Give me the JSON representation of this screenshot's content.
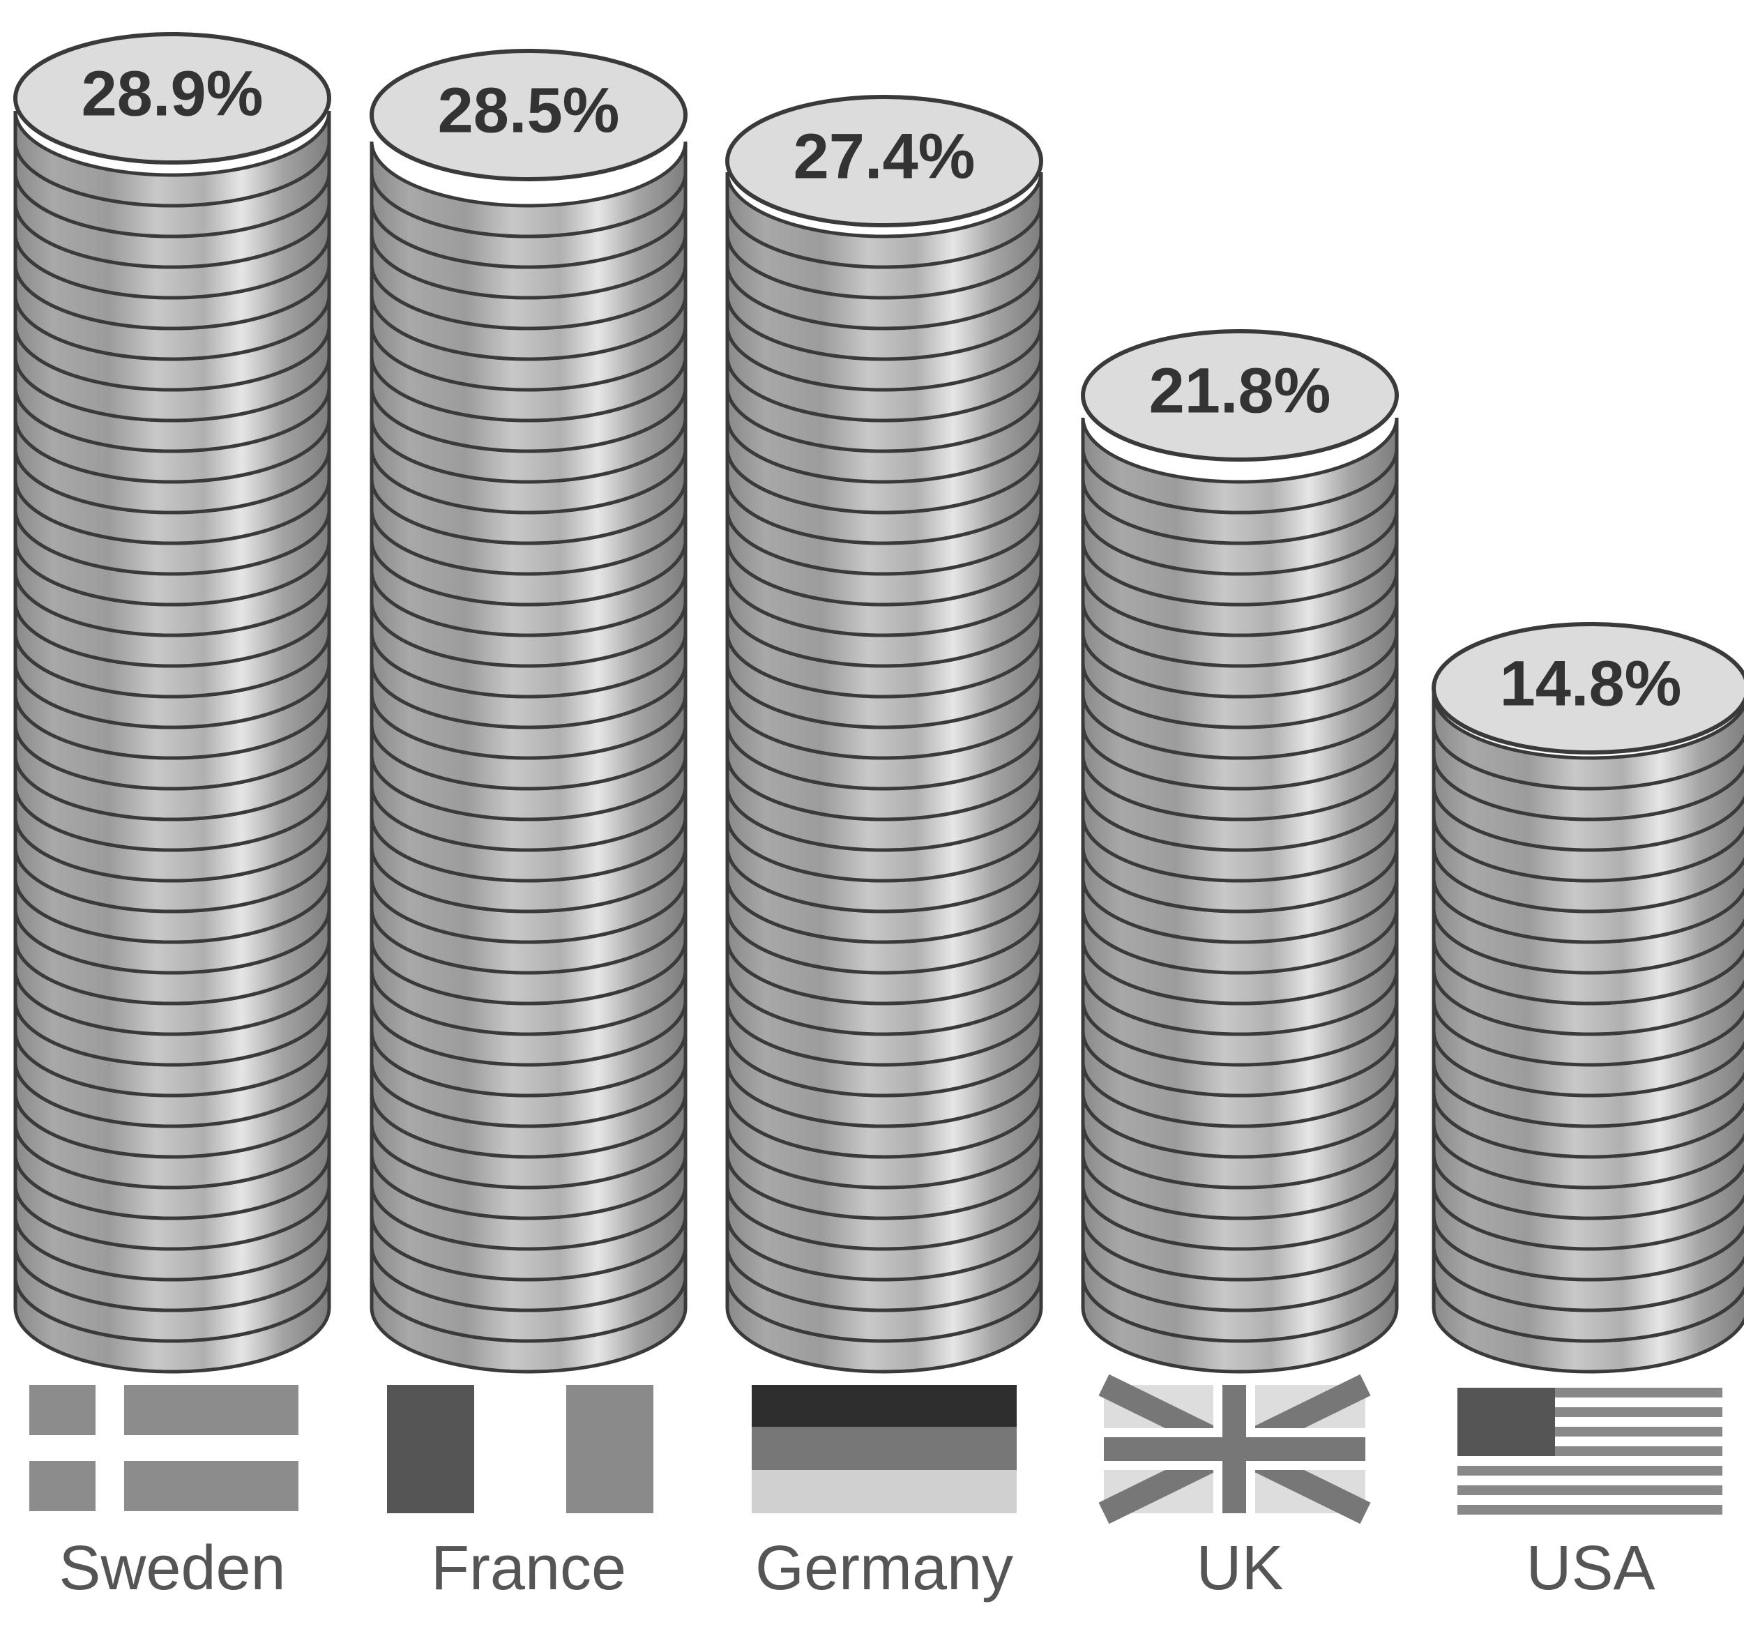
{
  "chart_data": {
    "type": "bar",
    "categories": [
      "Sweden",
      "France",
      "Germany",
      "UK",
      "USA"
    ],
    "values": [
      28.9,
      28.5,
      27.4,
      21.8,
      14.8
    ],
    "value_labels": [
      "28.9%",
      "28.5%",
      "27.4%",
      "21.8%",
      "14.8%"
    ],
    "color": "#9a9a9a"
  }
}
